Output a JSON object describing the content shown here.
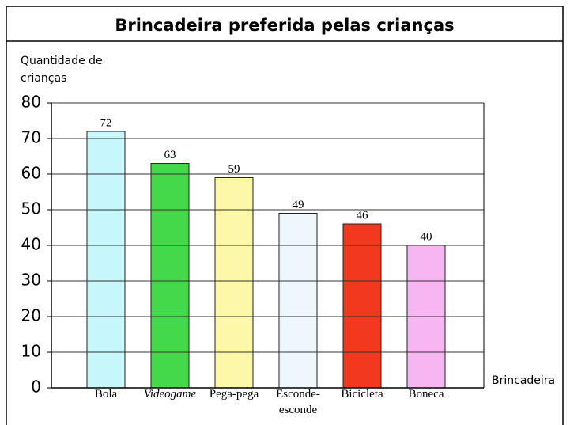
{
  "chart_data": {
    "type": "bar",
    "title": "Brincadeira preferida pelas crianças",
    "y_label": "Quantidade de crianças",
    "x_label": "Brincadeira",
    "categories": [
      "Bola",
      "Videogame",
      "Pega-pega",
      "Esconde-esconde",
      "Bicicleta",
      "Boneca"
    ],
    "values": [
      72,
      63,
      59,
      49,
      46,
      40
    ],
    "colors": [
      "#c8f7fb",
      "#44d94a",
      "#fdf8a8",
      "#eef8fc",
      "#f0391f",
      "#f7b6f2"
    ],
    "italic_categories": [
      1
    ],
    "ylim": [
      0,
      80
    ],
    "yticks": [
      0,
      10,
      20,
      30,
      40,
      50,
      60,
      70,
      80
    ],
    "grid": true
  }
}
